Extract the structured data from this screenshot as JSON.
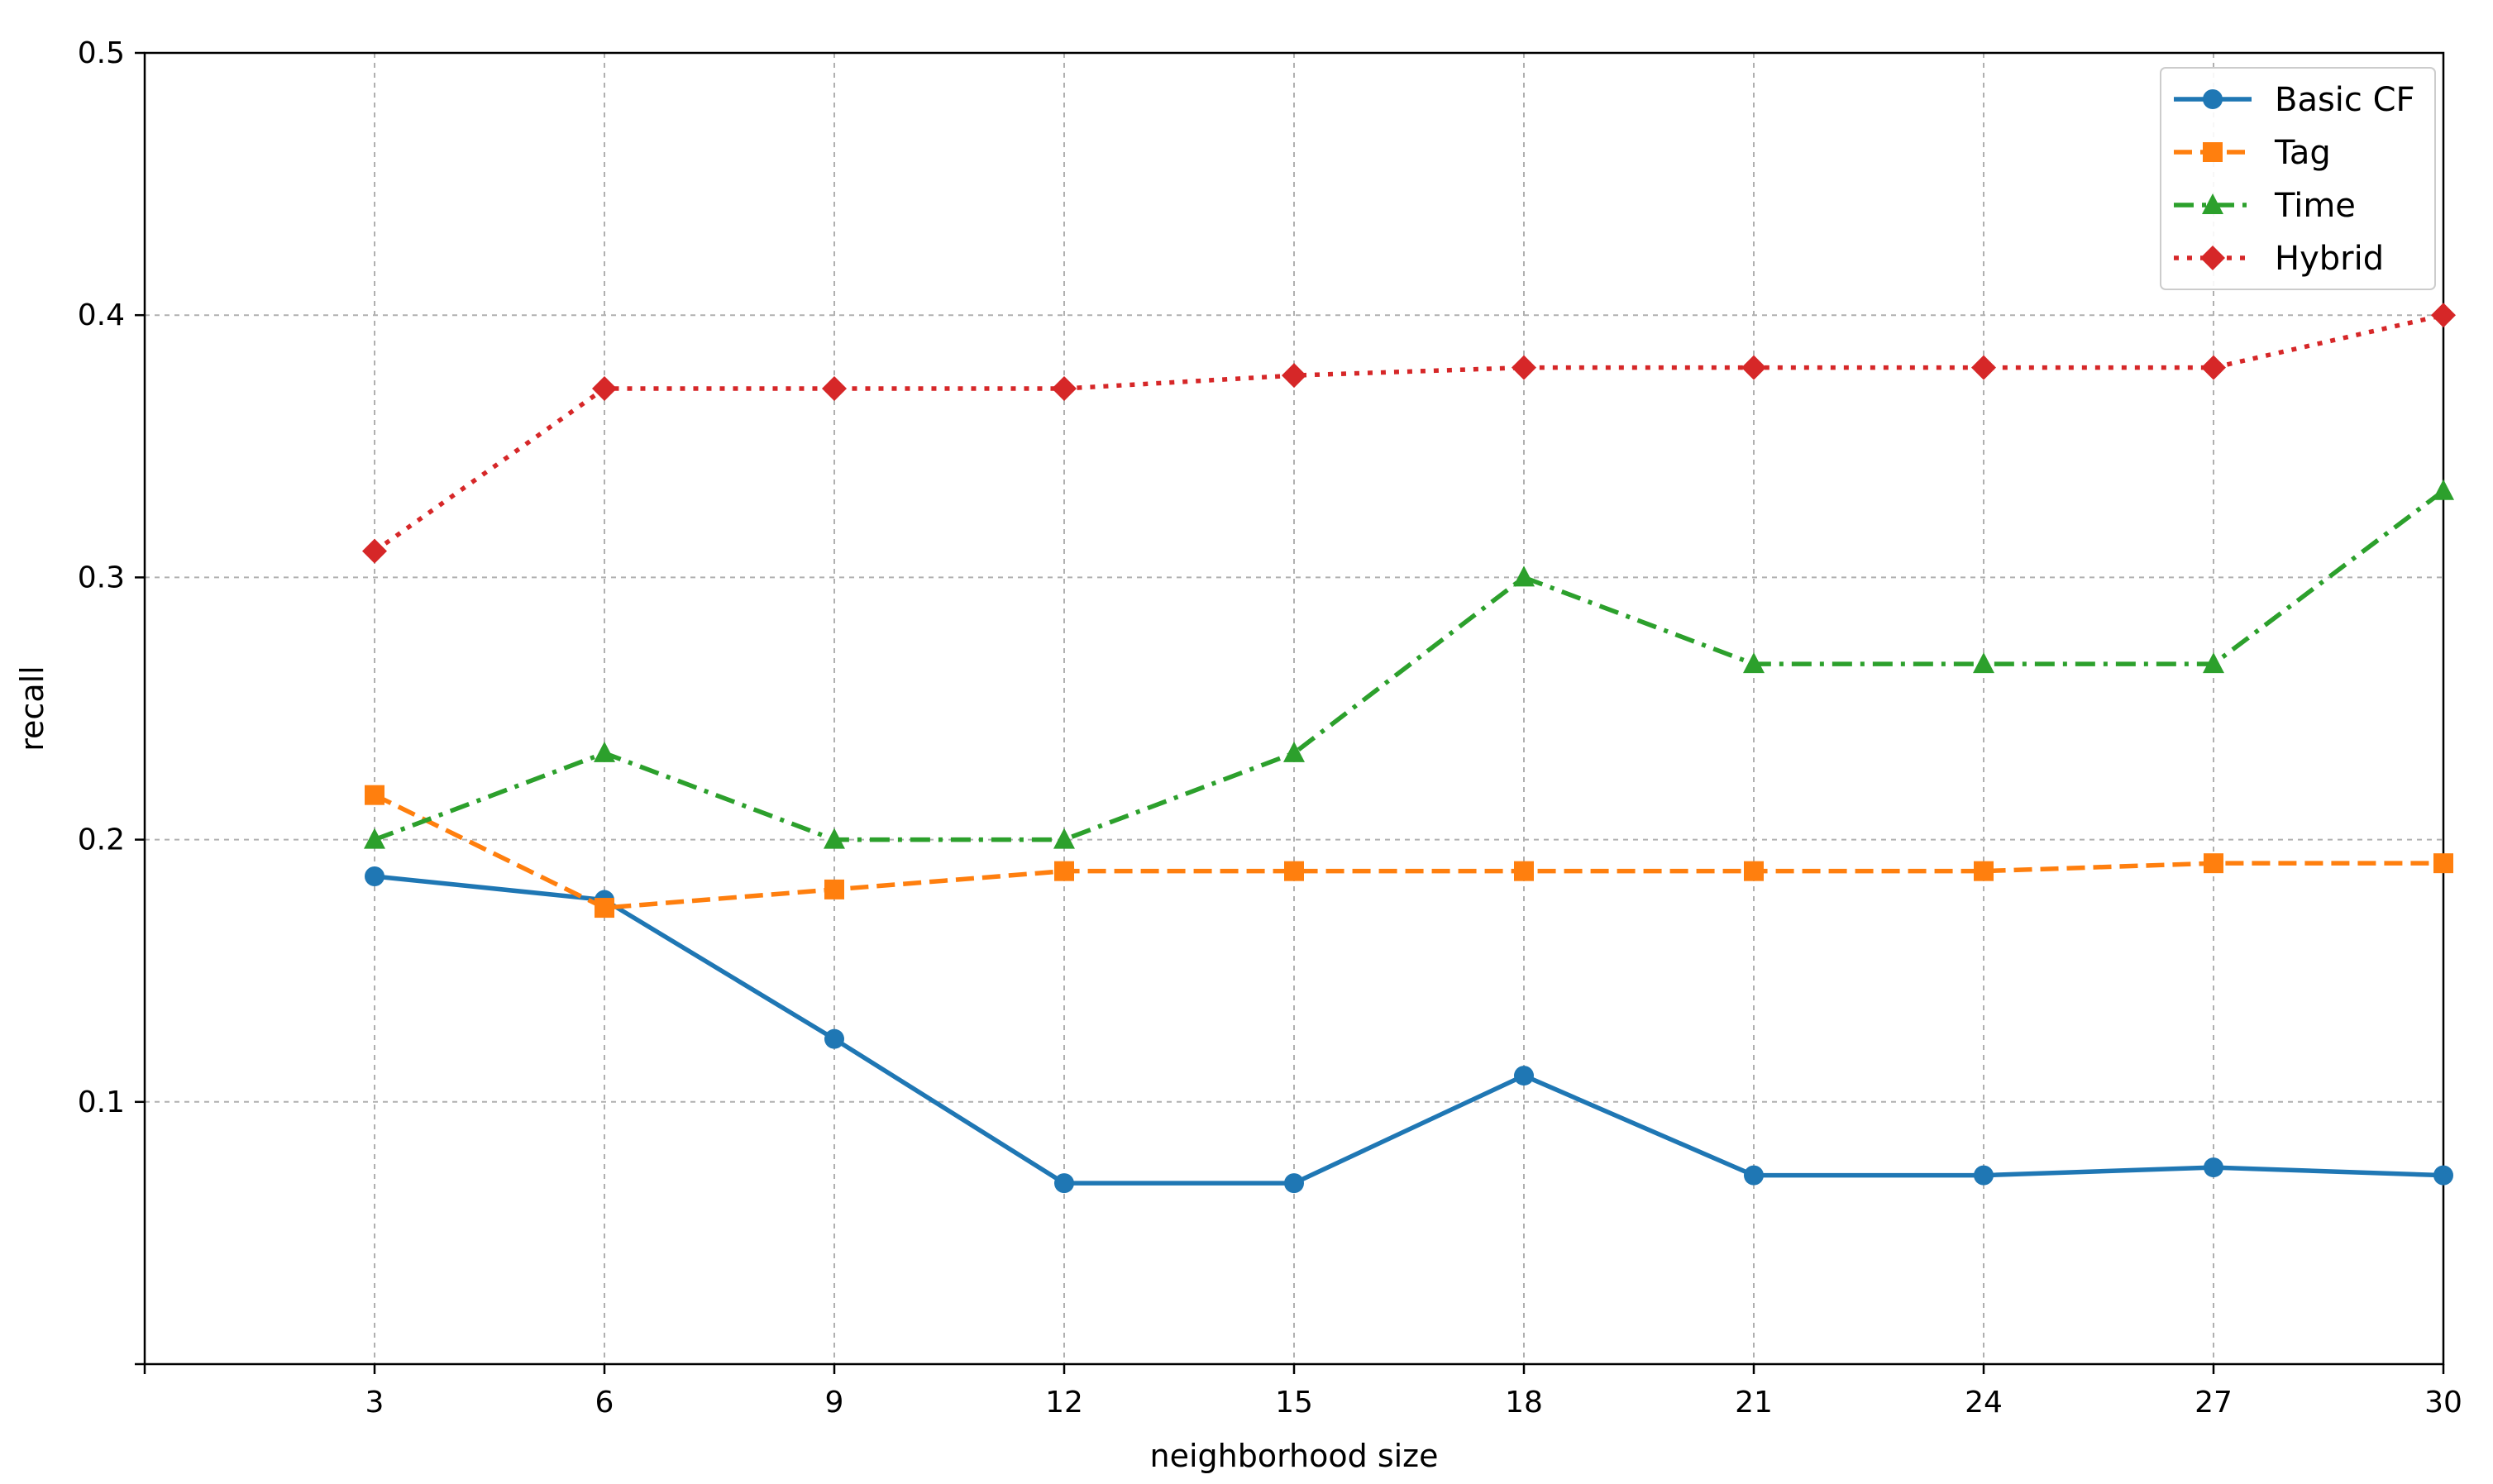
{
  "chart_data": {
    "type": "line",
    "title": "",
    "xlabel": "neighborhood size",
    "ylabel": "recall",
    "x": [
      3,
      6,
      9,
      12,
      15,
      18,
      21,
      24,
      27,
      30
    ],
    "xlim": [
      0,
      30
    ],
    "ylim": [
      0,
      0.5
    ],
    "xticks": [
      3,
      6,
      9,
      12,
      15,
      18,
      21,
      24,
      27,
      30
    ],
    "xtick_labels": [
      "3",
      "6",
      "9",
      "12",
      "15",
      "18",
      "21",
      "24",
      "27",
      "30"
    ],
    "yticks": [
      0.1,
      0.2,
      0.3,
      0.4,
      0.5
    ],
    "ytick_labels": [
      "0.1",
      "0.2",
      "0.3",
      "0.4",
      "0.5"
    ],
    "grid": true,
    "legend_position": "top-right",
    "series": [
      {
        "name": "Basic CF",
        "key": "basic-cf",
        "color": "#1f77b4",
        "line_style": "solid",
        "marker": "circle",
        "values": [
          0.186,
          0.177,
          0.124,
          0.069,
          0.069,
          0.11,
          0.072,
          0.072,
          0.075,
          0.072
        ]
      },
      {
        "name": "Tag",
        "key": "tag",
        "color": "#ff7f0e",
        "line_style": "dashed",
        "marker": "square",
        "values": [
          0.217,
          0.174,
          0.181,
          0.188,
          0.188,
          0.188,
          0.188,
          0.188,
          0.191,
          0.191
        ]
      },
      {
        "name": "Time",
        "key": "time",
        "color": "#2ca02c",
        "line_style": "dashdot",
        "marker": "triangle",
        "values": [
          0.2,
          0.233,
          0.2,
          0.2,
          0.233,
          0.3,
          0.267,
          0.267,
          0.267,
          0.333
        ]
      },
      {
        "name": "Hybrid",
        "key": "hybrid",
        "color": "#d62728",
        "line_style": "dotted",
        "marker": "diamond",
        "values": [
          0.31,
          0.372,
          0.372,
          0.372,
          0.377,
          0.38,
          0.38,
          0.38,
          0.38,
          0.4
        ]
      }
    ]
  }
}
